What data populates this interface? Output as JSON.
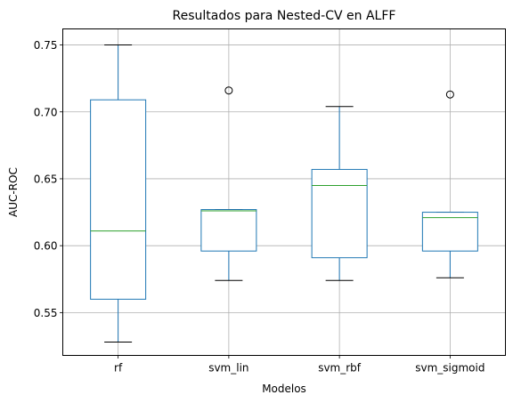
{
  "chart_data": {
    "type": "box",
    "title": "Resultados para Nested-CV en ALFF",
    "xlabel": "Modelos",
    "ylabel": "AUC-ROC",
    "ylim": [
      0.518,
      0.762
    ],
    "yticks": [
      0.55,
      0.6,
      0.65,
      0.7,
      0.75
    ],
    "ytick_labels": [
      "0.55",
      "0.60",
      "0.65",
      "0.70",
      "0.75"
    ],
    "grid": true,
    "categories": [
      "rf",
      "svm_lin",
      "svm_rbf",
      "svm_sigmoid"
    ],
    "boxes": [
      {
        "category": "rf",
        "whisker_low": 0.528,
        "q1": 0.56,
        "median": 0.611,
        "q3": 0.709,
        "whisker_high": 0.75,
        "outliers": []
      },
      {
        "category": "svm_lin",
        "whisker_low": 0.574,
        "q1": 0.596,
        "median": 0.626,
        "q3": 0.627,
        "whisker_high": 0.627,
        "outliers": [
          0.716
        ]
      },
      {
        "category": "svm_rbf",
        "whisker_low": 0.574,
        "q1": 0.591,
        "median": 0.645,
        "q3": 0.657,
        "whisker_high": 0.704,
        "outliers": []
      },
      {
        "category": "svm_sigmoid",
        "whisker_low": 0.576,
        "q1": 0.596,
        "median": 0.621,
        "q3": 0.625,
        "whisker_high": 0.625,
        "outliers": [
          0.713
        ]
      }
    ],
    "colors": {
      "box": "#1f77b4",
      "median": "#2ca02c",
      "whisker": "#000000",
      "grid": "#b0b0b0"
    }
  }
}
